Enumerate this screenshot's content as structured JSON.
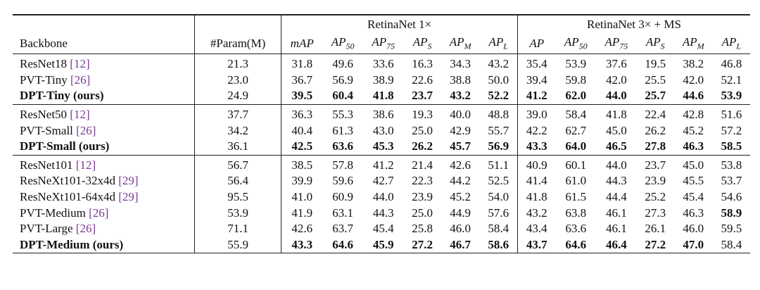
{
  "table": {
    "group_headers": [
      "RetinaNet 1×",
      "RetinaNet 3× + MS"
    ],
    "columns": [
      {
        "text": "Backbone"
      },
      {
        "text": "#Param(M)"
      },
      {
        "text": "mAP"
      },
      {
        "text": "AP",
        "sub": "50"
      },
      {
        "text": "AP",
        "sub": "75"
      },
      {
        "text": "AP",
        "sub": "S"
      },
      {
        "text": "AP",
        "sub": "M"
      },
      {
        "text": "AP",
        "sub": "L"
      },
      {
        "text": "AP"
      },
      {
        "text": "AP",
        "sub": "50"
      },
      {
        "text": "AP",
        "sub": "75"
      },
      {
        "text": "AP",
        "sub": "S"
      },
      {
        "text": "AP",
        "sub": "M"
      },
      {
        "text": "AP",
        "sub": "L"
      }
    ],
    "groups": [
      {
        "rows": [
          {
            "name": "ResNet18",
            "cite": "[12]",
            "values": [
              "21.3",
              "31.8",
              "49.6",
              "33.6",
              "16.3",
              "34.3",
              "43.2",
              "35.4",
              "53.9",
              "37.6",
              "19.5",
              "38.2",
              "46.8"
            ]
          },
          {
            "name": "PVT-Tiny",
            "cite": "[26]",
            "values": [
              "23.0",
              "36.7",
              "56.9",
              "38.9",
              "22.6",
              "38.8",
              "50.0",
              "39.4",
              "59.8",
              "42.0",
              "25.5",
              "42.0",
              "52.1"
            ]
          },
          {
            "name": "DPT-Tiny (ours)",
            "values": [
              "24.9",
              "39.5",
              "60.4",
              "41.8",
              "23.7",
              "43.2",
              "52.2",
              "41.2",
              "62.0",
              "44.0",
              "25.7",
              "44.6",
              "53.9"
            ]
          }
        ]
      },
      {
        "rows": [
          {
            "name": "ResNet50",
            "cite": "[12]",
            "values": [
              "37.7",
              "36.3",
              "55.3",
              "38.6",
              "19.3",
              "40.0",
              "48.8",
              "39.0",
              "58.4",
              "41.8",
              "22.4",
              "42.8",
              "51.6"
            ]
          },
          {
            "name": "PVT-Small",
            "cite": "[26]",
            "values": [
              "34.2",
              "40.4",
              "61.3",
              "43.0",
              "25.0",
              "42.9",
              "55.7",
              "42.2",
              "62.7",
              "45.0",
              "26.2",
              "45.2",
              "57.2"
            ]
          },
          {
            "name": "DPT-Small (ours)",
            "values": [
              "36.1",
              "42.5",
              "63.6",
              "45.3",
              "26.2",
              "45.7",
              "56.9",
              "43.3",
              "64.0",
              "46.5",
              "27.8",
              "46.3",
              "58.5"
            ]
          }
        ]
      },
      {
        "rows": [
          {
            "name": "ResNet101",
            "cite": "[12]",
            "values": [
              "56.7",
              "38.5",
              "57.8",
              "41.2",
              "21.4",
              "42.6",
              "51.1",
              "40.9",
              "60.1",
              "44.0",
              "23.7",
              "45.0",
              "53.8"
            ]
          },
          {
            "name": "ResNeXt101-32x4d",
            "cite": "[29]",
            "values": [
              "56.4",
              "39.9",
              "59.6",
              "42.7",
              "22.3",
              "44.2",
              "52.5",
              "41.4",
              "61.0",
              "44.3",
              "23.9",
              "45.5",
              "53.7"
            ]
          },
          {
            "name": "ResNeXt101-64x4d",
            "cite": "[29]",
            "values": [
              "95.5",
              "41.0",
              "60.9",
              "44.0",
              "23.9",
              "45.2",
              "54.0",
              "41.8",
              "61.5",
              "44.4",
              "25.2",
              "45.4",
              "54.6"
            ]
          },
          {
            "name": "PVT-Medium",
            "cite": "[26]",
            "values": [
              "53.9",
              "41.9",
              "63.1",
              "44.3",
              "25.0",
              "44.9",
              "57.6",
              "43.2",
              "63.8",
              "46.1",
              "27.3",
              "46.3",
              "58.9"
            ]
          },
          {
            "name": "PVT-Large",
            "cite": "[26]",
            "values": [
              "71.1",
              "42.6",
              "63.7",
              "45.4",
              "25.8",
              "46.0",
              "58.4",
              "43.4",
              "63.6",
              "46.1",
              "26.1",
              "46.0",
              "59.5"
            ]
          },
          {
            "name": "DPT-Medium (ours)",
            "values": [
              "55.9",
              "43.3",
              "64.6",
              "45.9",
              "27.2",
              "46.7",
              "58.6",
              "43.7",
              "64.6",
              "46.4",
              "27.2",
              "47.0",
              "58.4"
            ]
          }
        ]
      }
    ]
  }
}
